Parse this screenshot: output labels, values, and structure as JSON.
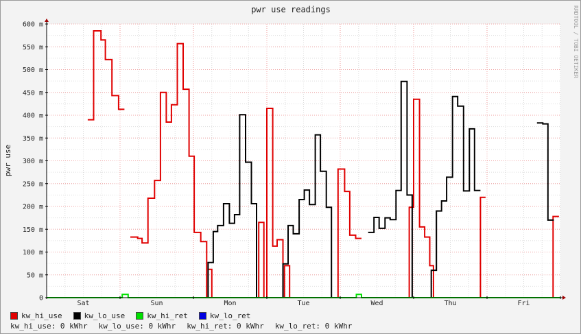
{
  "chart_data": {
    "type": "line",
    "title": "pwr use readings",
    "ylabel": "pwr use",
    "watermark": "RRDTOOL / TOBI OETIKER",
    "ylim": [
      0,
      600
    ],
    "xlim": [
      0,
      7
    ],
    "y_ticks": [
      {
        "value": 0,
        "label": "0"
      },
      {
        "value": 50,
        "label": "50 m"
      },
      {
        "value": 100,
        "label": "100 m"
      },
      {
        "value": 150,
        "label": "150 m"
      },
      {
        "value": 200,
        "label": "200 m"
      },
      {
        "value": 250,
        "label": "250 m"
      },
      {
        "value": 300,
        "label": "300 m"
      },
      {
        "value": 350,
        "label": "350 m"
      },
      {
        "value": 400,
        "label": "400 m"
      },
      {
        "value": 450,
        "label": "450 m"
      },
      {
        "value": 500,
        "label": "500 m"
      },
      {
        "value": 550,
        "label": "550 m"
      },
      {
        "value": 600,
        "label": "600 m"
      }
    ],
    "x_ticks": [
      {
        "value": 0.5,
        "label": "Sat"
      },
      {
        "value": 1.5,
        "label": "Sun"
      },
      {
        "value": 2.5,
        "label": "Mon"
      },
      {
        "value": 3.5,
        "label": "Tue"
      },
      {
        "value": 4.5,
        "label": "Wed"
      },
      {
        "value": 5.5,
        "label": "Thu"
      },
      {
        "value": 6.5,
        "label": "Fri"
      }
    ],
    "grid": true,
    "series": [
      {
        "name": "kw_hi_use",
        "color": "#e00000",
        "points": [
          [
            0.56,
            390
          ],
          [
            0.64,
            390
          ],
          [
            0.64,
            585
          ],
          [
            0.74,
            585
          ],
          [
            0.74,
            565
          ],
          [
            0.8,
            565
          ],
          [
            0.8,
            522
          ],
          [
            0.89,
            522
          ],
          [
            0.89,
            443
          ],
          [
            0.98,
            443
          ],
          [
            0.98,
            413
          ],
          [
            1.06,
            413
          ],
          null,
          [
            1.14,
            133
          ],
          [
            1.24,
            133
          ],
          [
            1.24,
            130
          ],
          [
            1.3,
            130
          ],
          [
            1.3,
            120
          ],
          [
            1.38,
            120
          ],
          [
            1.38,
            218
          ],
          [
            1.47,
            218
          ],
          [
            1.47,
            257
          ],
          [
            1.55,
            257
          ],
          [
            1.55,
            450
          ],
          [
            1.63,
            450
          ],
          [
            1.63,
            385
          ],
          [
            1.7,
            385
          ],
          [
            1.7,
            423
          ],
          [
            1.78,
            423
          ],
          [
            1.78,
            557
          ],
          [
            1.86,
            557
          ],
          [
            1.86,
            457
          ],
          [
            1.94,
            457
          ],
          [
            1.94,
            310
          ],
          [
            2.01,
            310
          ],
          [
            2.01,
            143
          ],
          [
            2.1,
            143
          ],
          [
            2.1,
            123
          ],
          [
            2.18,
            123
          ],
          [
            2.18,
            0
          ],
          null,
          [
            2.21,
            62
          ],
          [
            2.25,
            62
          ],
          [
            2.25,
            0
          ],
          null,
          [
            2.89,
            0
          ],
          [
            2.89,
            165
          ],
          [
            2.96,
            165
          ],
          [
            2.96,
            0
          ],
          null,
          [
            3.0,
            0
          ],
          [
            3.0,
            415
          ],
          [
            3.08,
            415
          ],
          [
            3.08,
            113
          ],
          [
            3.14,
            113
          ],
          [
            3.14,
            127
          ],
          [
            3.22,
            127
          ],
          [
            3.22,
            0
          ],
          null,
          [
            3.24,
            0
          ],
          [
            3.24,
            70
          ],
          [
            3.31,
            70
          ],
          [
            3.31,
            0
          ],
          null,
          [
            3.97,
            0
          ],
          [
            3.97,
            282
          ],
          [
            4.06,
            282
          ],
          [
            4.06,
            233
          ],
          [
            4.13,
            233
          ],
          [
            4.13,
            137
          ],
          [
            4.21,
            137
          ],
          [
            4.21,
            130
          ],
          [
            4.29,
            130
          ],
          null,
          [
            4.94,
            0
          ],
          [
            4.94,
            198
          ],
          [
            5.0,
            198
          ],
          [
            5.0,
            435
          ],
          [
            5.08,
            435
          ],
          [
            5.08,
            155
          ],
          [
            5.15,
            155
          ],
          [
            5.15,
            133
          ],
          [
            5.22,
            133
          ],
          [
            5.22,
            70
          ],
          [
            5.27,
            70
          ],
          [
            5.27,
            0
          ],
          null,
          [
            5.91,
            0
          ],
          [
            5.91,
            220
          ],
          [
            5.98,
            220
          ],
          null,
          [
            6.9,
            0
          ],
          [
            6.9,
            178
          ],
          [
            6.98,
            178
          ]
        ]
      },
      {
        "name": "kw_lo_use",
        "color": "#000000",
        "points": [
          [
            2.2,
            0
          ],
          [
            2.2,
            77
          ],
          [
            2.27,
            77
          ],
          [
            2.27,
            145
          ],
          [
            2.33,
            145
          ],
          [
            2.33,
            158
          ],
          [
            2.41,
            158
          ],
          [
            2.41,
            206
          ],
          [
            2.49,
            206
          ],
          [
            2.49,
            163
          ],
          [
            2.56,
            163
          ],
          [
            2.56,
            182
          ],
          [
            2.63,
            182
          ],
          [
            2.63,
            401
          ],
          [
            2.71,
            401
          ],
          [
            2.71,
            297
          ],
          [
            2.79,
            297
          ],
          [
            2.79,
            206
          ],
          [
            2.86,
            206
          ],
          [
            2.86,
            0
          ],
          null,
          [
            3.22,
            0
          ],
          [
            3.22,
            74
          ],
          [
            3.29,
            74
          ],
          [
            3.29,
            158
          ],
          [
            3.36,
            158
          ],
          [
            3.36,
            140
          ],
          [
            3.44,
            140
          ],
          [
            3.44,
            215
          ],
          [
            3.51,
            215
          ],
          [
            3.51,
            236
          ],
          [
            3.58,
            236
          ],
          [
            3.58,
            204
          ],
          [
            3.66,
            204
          ],
          [
            3.66,
            357
          ],
          [
            3.73,
            357
          ],
          [
            3.73,
            277
          ],
          [
            3.81,
            277
          ],
          [
            3.81,
            198
          ],
          [
            3.88,
            198
          ],
          [
            3.88,
            0
          ],
          null,
          [
            4.38,
            143
          ],
          [
            4.46,
            143
          ],
          [
            4.46,
            176
          ],
          [
            4.53,
            176
          ],
          [
            4.53,
            152
          ],
          [
            4.61,
            152
          ],
          [
            4.61,
            175
          ],
          [
            4.68,
            175
          ],
          [
            4.68,
            171
          ],
          [
            4.76,
            171
          ],
          [
            4.76,
            235
          ],
          [
            4.83,
            235
          ],
          [
            4.83,
            474
          ],
          [
            4.91,
            474
          ],
          [
            4.91,
            225
          ],
          [
            4.98,
            225
          ],
          [
            4.98,
            0
          ],
          null,
          [
            5.24,
            0
          ],
          [
            5.24,
            60
          ],
          [
            5.31,
            60
          ],
          [
            5.31,
            190
          ],
          [
            5.38,
            190
          ],
          [
            5.38,
            212
          ],
          [
            5.45,
            212
          ],
          [
            5.45,
            264
          ],
          [
            5.53,
            264
          ],
          [
            5.53,
            441
          ],
          [
            5.6,
            441
          ],
          [
            5.6,
            420
          ],
          [
            5.68,
            420
          ],
          [
            5.68,
            234
          ],
          [
            5.76,
            234
          ],
          [
            5.76,
            370
          ],
          [
            5.83,
            370
          ],
          [
            5.83,
            235
          ],
          [
            5.91,
            235
          ],
          null,
          [
            6.68,
            383
          ],
          [
            6.76,
            383
          ],
          [
            6.76,
            381
          ],
          [
            6.83,
            381
          ],
          [
            6.83,
            170
          ],
          [
            6.91,
            170
          ]
        ]
      },
      {
        "name": "kw_hi_ret",
        "color": "#00e000",
        "points": [
          [
            0.0,
            0
          ],
          [
            1.03,
            0
          ],
          [
            1.03,
            7
          ],
          [
            1.11,
            7
          ],
          [
            1.11,
            0
          ],
          [
            4.22,
            0
          ],
          [
            4.22,
            7
          ],
          [
            4.29,
            7
          ],
          [
            4.29,
            0
          ],
          [
            7.0,
            0
          ]
        ]
      },
      {
        "name": "kw_lo_ret",
        "color": "#0000e0",
        "points": []
      }
    ]
  },
  "legend": {
    "items": [
      {
        "name": "kw_hi_use",
        "color": "#e00000"
      },
      {
        "name": "kw_lo_use",
        "color": "#000000"
      },
      {
        "name": "kw_hi_ret",
        "color": "#00e000"
      },
      {
        "name": "kw_lo_ret",
        "color": "#0000e0"
      }
    ],
    "totals": [
      "kw_hi_use: 0 kWhr",
      "kw_lo_use: 0 kWhr",
      "kw_hi_ret: 0 kWhr",
      "kw_lo_ret: 0 kWhr"
    ]
  }
}
